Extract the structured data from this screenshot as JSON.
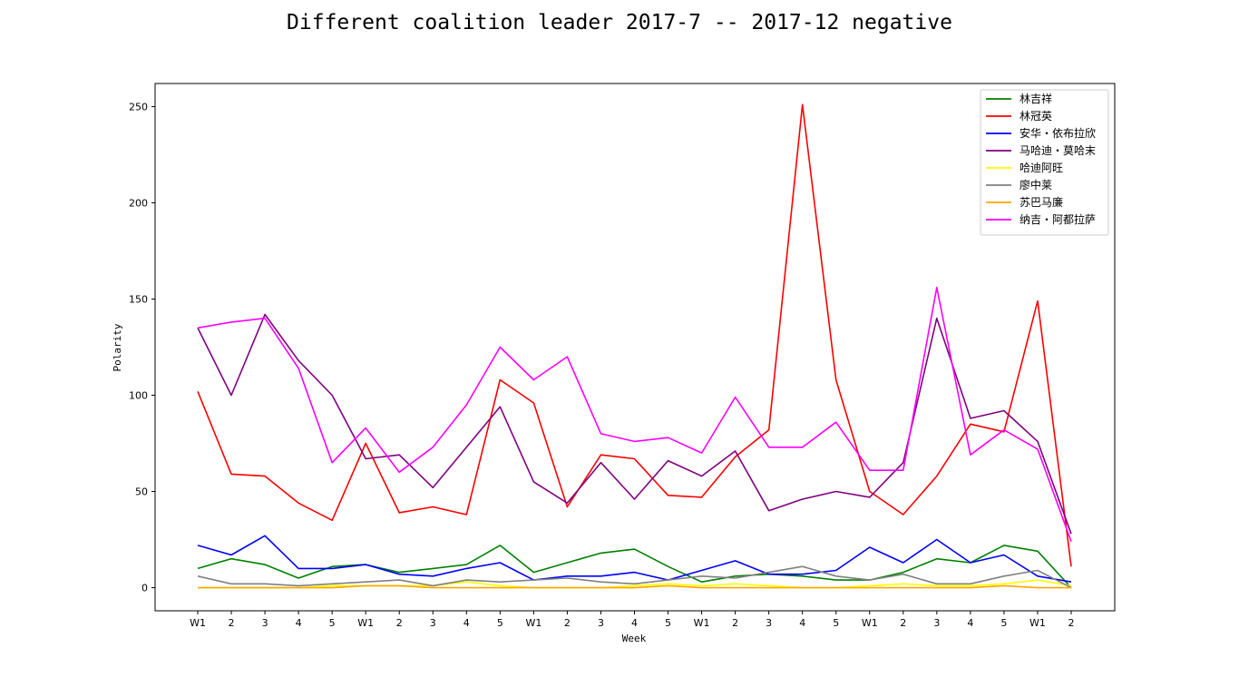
{
  "chart_data": {
    "type": "line",
    "title": "Different coalition leader 2017-7 -- 2017-12 negative",
    "xlabel": "Week",
    "ylabel": "Polarity",
    "ylim": [
      -12,
      262
    ],
    "yticks": [
      0,
      50,
      100,
      150,
      200,
      250
    ],
    "grid": false,
    "legend_position": "top-right",
    "categories": [
      "W1",
      "2",
      "3",
      "4",
      "5",
      "W1",
      "2",
      "3",
      "4",
      "5",
      "W1",
      "2",
      "3",
      "4",
      "5",
      "W1",
      "2",
      "3",
      "4",
      "5",
      "W1",
      "2",
      "3",
      "4",
      "5",
      "W1",
      "2"
    ],
    "series": [
      {
        "name": "林吉祥",
        "color": "#008000",
        "values": [
          10,
          15,
          12,
          5,
          11,
          12,
          8,
          10,
          12,
          22,
          8,
          13,
          18,
          20,
          11,
          3,
          6,
          7,
          6,
          4,
          4,
          8,
          15,
          13,
          22,
          19,
          0
        ]
      },
      {
        "name": "林冠英",
        "color": "#ff0000",
        "values": [
          102,
          59,
          58,
          44,
          35,
          75,
          39,
          42,
          38,
          108,
          96,
          42,
          69,
          67,
          48,
          47,
          68,
          82,
          251,
          108,
          50,
          38,
          58,
          85,
          81,
          149,
          11
        ]
      },
      {
        "name": "安华・依布拉欣",
        "color": "#0000ff",
        "values": [
          22,
          17,
          27,
          10,
          10,
          12,
          7,
          6,
          10,
          13,
          4,
          6,
          6,
          8,
          4,
          9,
          14,
          7,
          7,
          9,
          21,
          13,
          25,
          13,
          17,
          6,
          3
        ]
      },
      {
        "name": "马哈迪・莫哈末",
        "color": "#800080",
        "values": [
          135,
          100,
          142,
          118,
          100,
          67,
          69,
          52,
          73,
          94,
          55,
          44,
          65,
          46,
          66,
          58,
          71,
          40,
          46,
          50,
          47,
          65,
          140,
          88,
          92,
          76,
          28
        ]
      },
      {
        "name": "哈迪阿旺",
        "color": "#ffff00",
        "values": [
          0,
          0,
          0,
          0,
          1,
          1,
          1,
          1,
          3,
          1,
          0,
          0,
          0,
          1,
          2,
          1,
          2,
          1,
          0,
          0,
          1,
          2,
          1,
          1,
          2,
          4,
          1
        ]
      },
      {
        "name": "廖中莱",
        "color": "#808080",
        "values": [
          6,
          2,
          2,
          1,
          2,
          3,
          4,
          1,
          4,
          3,
          4,
          5,
          3,
          2,
          4,
          6,
          5,
          8,
          11,
          6,
          4,
          7,
          2,
          2,
          6,
          9,
          0
        ]
      },
      {
        "name": "苏巴马廉",
        "color": "#ffa500",
        "values": [
          0,
          0,
          0,
          0,
          0,
          1,
          1,
          0,
          0,
          0,
          0,
          0,
          0,
          0,
          1,
          0,
          0,
          0,
          0,
          0,
          0,
          0,
          0,
          0,
          1,
          0,
          0
        ]
      },
      {
        "name": "纳吉・阿都拉萨",
        "color": "#ff00ff",
        "values": [
          135,
          138,
          140,
          114,
          65,
          83,
          60,
          73,
          95,
          125,
          108,
          120,
          80,
          76,
          78,
          70,
          99,
          73,
          73,
          86,
          61,
          61,
          156,
          69,
          82,
          72,
          24
        ]
      }
    ]
  }
}
